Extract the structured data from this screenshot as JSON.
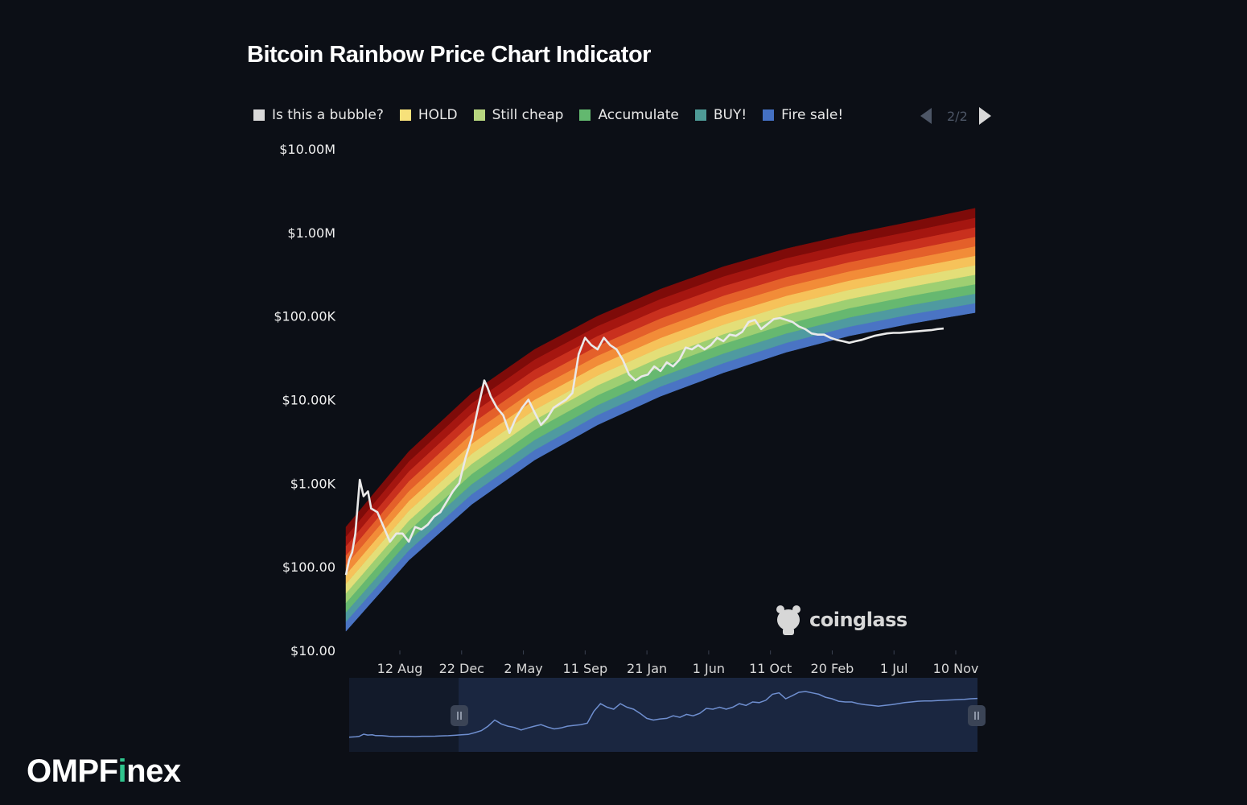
{
  "title": "Bitcoin Rainbow Price Chart Indicator",
  "legend": [
    {
      "label": "Is this a bubble?",
      "color": "#d9d9d9"
    },
    {
      "label": "HOLD",
      "color": "#f7e17a"
    },
    {
      "label": "Still cheap",
      "color": "#b7d67f"
    },
    {
      "label": "Accumulate",
      "color": "#63b86f"
    },
    {
      "label": "BUY!",
      "color": "#4e9a96"
    },
    {
      "label": "Fire sale!",
      "color": "#4470c2"
    }
  ],
  "pager": {
    "text": "2/2"
  },
  "watermark": {
    "text": "coinglass"
  },
  "brand": {
    "prefix": "OMPF",
    "accent": "i",
    "suffix": "nex"
  },
  "chart_data": {
    "type": "area",
    "yscale": "log",
    "ylim": [
      10,
      10000000
    ],
    "y_ticks": [
      "$10.00",
      "$100.00",
      "$1.00K",
      "$10.00K",
      "$100.00K",
      "$1.00M",
      "$10.00M"
    ],
    "x_ticks": [
      "12 Aug",
      "22 Dec",
      "2 May",
      "11 Sep",
      "21 Jan",
      "1 Jun",
      "11 Oct",
      "20 Feb",
      "1 Jul",
      "10 Nov"
    ],
    "band_colors": [
      "#4a74c4",
      "#4f9aa0",
      "#66b870",
      "#9ecf72",
      "#e3de78",
      "#f6c25a",
      "#f28c38",
      "#e4602a",
      "#c9301e",
      "#a51610",
      "#7e0b09"
    ],
    "band_bounds": {
      "x": [
        0,
        0.1,
        0.2,
        0.3,
        0.4,
        0.5,
        0.6,
        0.7,
        0.8,
        0.9,
        1
      ],
      "lower": [
        17,
        120,
        560,
        1900,
        5000,
        11000,
        21000,
        37000,
        58000,
        82000,
        110000
      ],
      "upper": [
        300,
        2400,
        12000,
        40000,
        100000,
        210000,
        390000,
        640000,
        950000,
        1350000,
        1950000
      ]
    },
    "price_series": {
      "name": "",
      "x": [
        0,
        0.005,
        0.01,
        0.015,
        0.022,
        0.028,
        0.035,
        0.04,
        0.05,
        0.06,
        0.07,
        0.08,
        0.09,
        0.1,
        0.11,
        0.12,
        0.13,
        0.14,
        0.15,
        0.16,
        0.17,
        0.18,
        0.19,
        0.2,
        0.21,
        0.22,
        0.225,
        0.23,
        0.24,
        0.25,
        0.26,
        0.27,
        0.28,
        0.29,
        0.3,
        0.31,
        0.32,
        0.33,
        0.34,
        0.35,
        0.36,
        0.37,
        0.38,
        0.39,
        0.4,
        0.41,
        0.42,
        0.43,
        0.44,
        0.45,
        0.46,
        0.47,
        0.48,
        0.49,
        0.5,
        0.51,
        0.52,
        0.53,
        0.54,
        0.55,
        0.56,
        0.57,
        0.58,
        0.59,
        0.6,
        0.61,
        0.62,
        0.63,
        0.64,
        0.65,
        0.66,
        0.67,
        0.68,
        0.69,
        0.7,
        0.71,
        0.72,
        0.73,
        0.74,
        0.75,
        0.76,
        0.77,
        0.78,
        0.79,
        0.8,
        0.81,
        0.82,
        0.83,
        0.84,
        0.85,
        0.86,
        0.87,
        0.88,
        0.89,
        0.9,
        0.91,
        0.92,
        0.93,
        0.94,
        0.95
      ],
      "y": [
        80,
        120,
        150,
        250,
        1100,
        700,
        800,
        500,
        450,
        300,
        200,
        250,
        250,
        200,
        300,
        280,
        320,
        400,
        450,
        600,
        800,
        1000,
        2000,
        3500,
        8000,
        17000,
        14000,
        11000,
        8000,
        6500,
        4000,
        6000,
        8000,
        10000,
        7000,
        5000,
        6000,
        8000,
        9000,
        10000,
        12000,
        35000,
        55000,
        45000,
        40000,
        55000,
        45000,
        40000,
        30000,
        20000,
        17000,
        19000,
        20000,
        25000,
        22000,
        28000,
        25000,
        30000,
        42000,
        40000,
        45000,
        40000,
        45000,
        55000,
        50000,
        60000,
        58000,
        65000,
        85000,
        90000,
        70000,
        80000,
        92000,
        95000,
        90000,
        85000,
        75000,
        70000,
        62000,
        60000,
        60000,
        55000,
        52000,
        50000,
        48000,
        50000,
        52000,
        55000,
        58000,
        60000,
        62000,
        63000,
        63000,
        64000,
        65000,
        66000,
        67000,
        68000,
        70000,
        71000
      ]
    }
  }
}
